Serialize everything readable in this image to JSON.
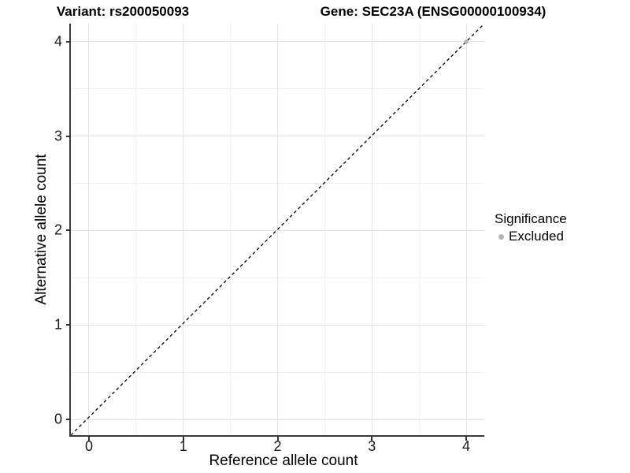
{
  "header": {
    "variant_title": "Variant: rs200050093",
    "gene_title": "Gene: SEC23A (ENSG00000100934)"
  },
  "chart_data": {
    "type": "scatter",
    "title_left": "Variant: rs200050093",
    "title_right": "Gene: SEC23A (ENSG00000100934)",
    "xlabel": "Reference allele count",
    "ylabel": "Alternative allele count",
    "xlim": [
      -0.192,
      4.192
    ],
    "ylim": [
      -0.167,
      4.192
    ],
    "x_ticks": [
      0,
      1,
      2,
      3,
      4
    ],
    "y_ticks": [
      0,
      1,
      2,
      3,
      4
    ],
    "x_minor_ticks": [
      0.5,
      1.5,
      2.5,
      3.5
    ],
    "y_minor_ticks": [
      0.5,
      1.5,
      2.5,
      3.5
    ],
    "grid": "on",
    "reference_line": {
      "equation": "y = x",
      "style": "dashed",
      "color": "#000000",
      "x1": -0.192,
      "y1": -0.167,
      "x2": 4.192,
      "y2": 4.192
    },
    "series": [
      {
        "name": "Excluded",
        "color": "#b3b3b3",
        "points": [
          {
            "x": 4,
            "y": 4
          }
        ]
      }
    ],
    "legend": {
      "position": "right",
      "title": "Significance",
      "items": [
        {
          "label": "Excluded",
          "color": "#b3b3b3"
        }
      ]
    },
    "colors": {
      "grid_major": "#e3e3e3",
      "grid_minor": "#f1f1f1",
      "axis_line": "#3c3c3c",
      "point_gray": "#b3b3b3"
    }
  }
}
